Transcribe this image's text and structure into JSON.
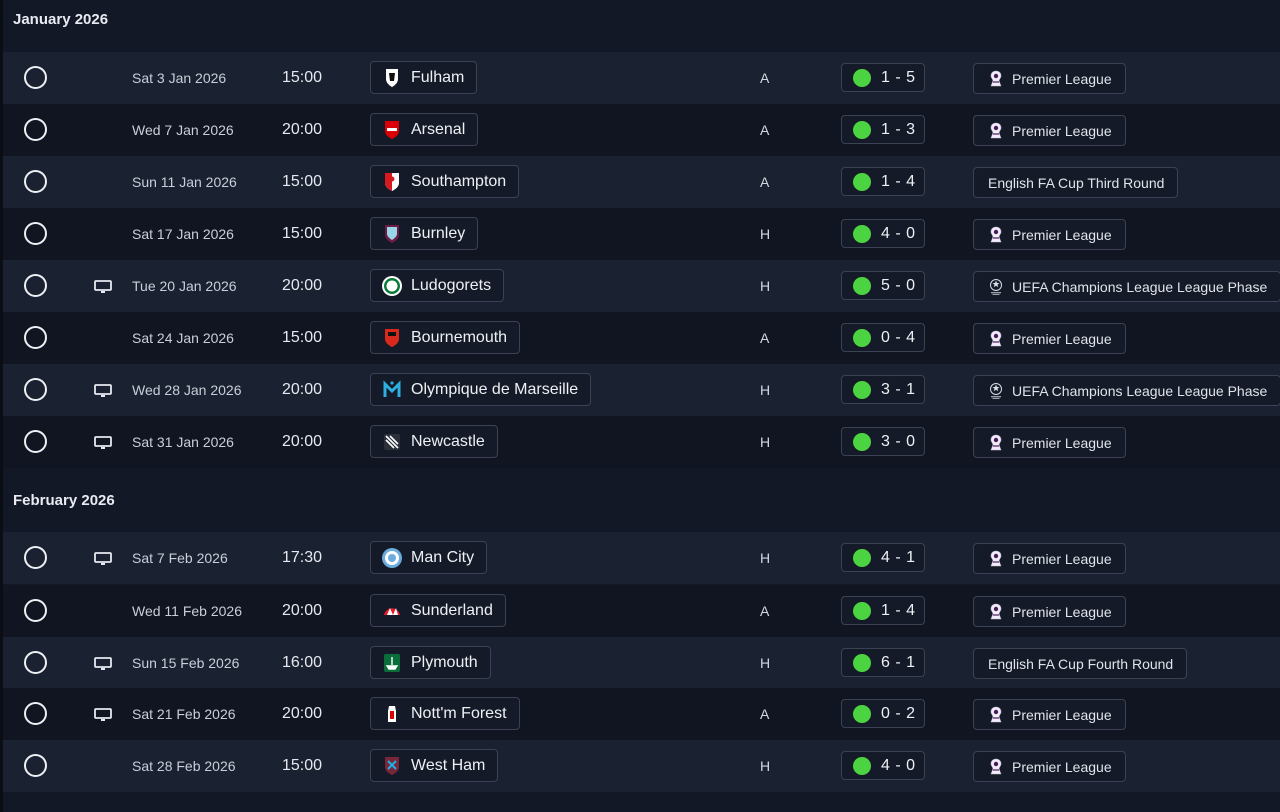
{
  "months": [
    {
      "title": "January 2026",
      "fixtures": [
        {
          "date": "Sat 3 Jan 2026",
          "time": "15:00",
          "tv": false,
          "opponent": "Fulham",
          "crest": "fulham-crest-icon",
          "crest_colors": [
            "#ffffff",
            "#111111"
          ],
          "venue": "A",
          "score": "1 - 5",
          "result_color": "#4bd341",
          "competition": "Premier League",
          "comp_icon": "premier-league-icon"
        },
        {
          "date": "Wed 7 Jan 2026",
          "time": "20:00",
          "tv": false,
          "opponent": "Arsenal",
          "crest": "arsenal-crest-icon",
          "crest_colors": [
            "#db0007",
            "#ffffff"
          ],
          "venue": "A",
          "score": "1 - 3",
          "result_color": "#4bd341",
          "competition": "Premier League",
          "comp_icon": "premier-league-icon"
        },
        {
          "date": "Sun 11 Jan 2026",
          "time": "15:00",
          "tv": false,
          "opponent": "Southampton",
          "crest": "southampton-crest-icon",
          "crest_colors": [
            "#d71920",
            "#ffffff"
          ],
          "venue": "A",
          "score": "1 - 4",
          "result_color": "#4bd341",
          "competition": "English FA Cup Third Round",
          "comp_icon": ""
        },
        {
          "date": "Sat 17 Jan 2026",
          "time": "15:00",
          "tv": false,
          "opponent": "Burnley",
          "crest": "burnley-crest-icon",
          "crest_colors": [
            "#6c1d45",
            "#99d6ea"
          ],
          "venue": "H",
          "score": "4 - 0",
          "result_color": "#4bd341",
          "competition": "Premier League",
          "comp_icon": "premier-league-icon"
        },
        {
          "date": "Tue 20 Jan 2026",
          "time": "20:00",
          "tv": true,
          "opponent": "Ludogorets",
          "crest": "ludogorets-crest-icon",
          "crest_colors": [
            "#0a7a3a",
            "#ffffff"
          ],
          "venue": "H",
          "score": "5 - 0",
          "result_color": "#4bd341",
          "competition": "UEFA Champions League League Phase",
          "comp_icon": "champions-league-icon"
        },
        {
          "date": "Sat 24 Jan 2026",
          "time": "15:00",
          "tv": false,
          "opponent": "Bournemouth",
          "crest": "bournemouth-crest-icon",
          "crest_colors": [
            "#da291c",
            "#111111"
          ],
          "venue": "A",
          "score": "0 - 4",
          "result_color": "#4bd341",
          "competition": "Premier League",
          "comp_icon": "premier-league-icon"
        },
        {
          "date": "Wed 28 Jan 2026",
          "time": "20:00",
          "tv": true,
          "opponent": "Olympique de Marseille",
          "crest": "marseille-crest-icon",
          "crest_colors": [
            "#2faee0",
            "#ffffff"
          ],
          "venue": "H",
          "score": "3 - 1",
          "result_color": "#4bd341",
          "competition": "UEFA Champions League League Phase",
          "comp_icon": "champions-league-icon"
        },
        {
          "date": "Sat 31 Jan 2026",
          "time": "20:00",
          "tv": true,
          "opponent": "Newcastle",
          "crest": "newcastle-crest-icon",
          "crest_colors": [
            "#ffffff",
            "#241f20"
          ],
          "venue": "H",
          "score": "3 - 0",
          "result_color": "#4bd341",
          "competition": "Premier League",
          "comp_icon": "premier-league-icon"
        }
      ]
    },
    {
      "title": "February 2026",
      "fixtures": [
        {
          "date": "Sat 7 Feb 2026",
          "time": "17:30",
          "tv": true,
          "opponent": "Man City",
          "crest": "man-city-crest-icon",
          "crest_colors": [
            "#6cabdd",
            "#ffffff"
          ],
          "venue": "H",
          "score": "4 - 1",
          "result_color": "#4bd341",
          "competition": "Premier League",
          "comp_icon": "premier-league-icon"
        },
        {
          "date": "Wed 11 Feb 2026",
          "time": "20:00",
          "tv": false,
          "opponent": "Sunderland",
          "crest": "sunderland-crest-icon",
          "crest_colors": [
            "#eb172b",
            "#ffffff"
          ],
          "venue": "A",
          "score": "1 - 4",
          "result_color": "#4bd341",
          "competition": "Premier League",
          "comp_icon": "premier-league-icon"
        },
        {
          "date": "Sun 15 Feb 2026",
          "time": "16:00",
          "tv": true,
          "opponent": "Plymouth",
          "crest": "plymouth-crest-icon",
          "crest_colors": [
            "#0b6e3a",
            "#ffffff"
          ],
          "venue": "H",
          "score": "6 - 1",
          "result_color": "#4bd341",
          "competition": "English FA Cup Fourth Round",
          "comp_icon": ""
        },
        {
          "date": "Sat 21 Feb 2026",
          "time": "20:00",
          "tv": true,
          "opponent": "Nott'm Forest",
          "crest": "nottm-forest-crest-icon",
          "crest_colors": [
            "#dd0000",
            "#ffffff"
          ],
          "venue": "A",
          "score": "0 - 2",
          "result_color": "#4bd341",
          "competition": "Premier League",
          "comp_icon": "premier-league-icon"
        },
        {
          "date": "Sat 28 Feb 2026",
          "time": "15:00",
          "tv": false,
          "opponent": "West Ham",
          "crest": "west-ham-crest-icon",
          "crest_colors": [
            "#7a263a",
            "#1bb1e7"
          ],
          "venue": "H",
          "score": "4 - 0",
          "result_color": "#4bd341",
          "competition": "Premier League",
          "comp_icon": "premier-league-icon"
        }
      ]
    }
  ]
}
